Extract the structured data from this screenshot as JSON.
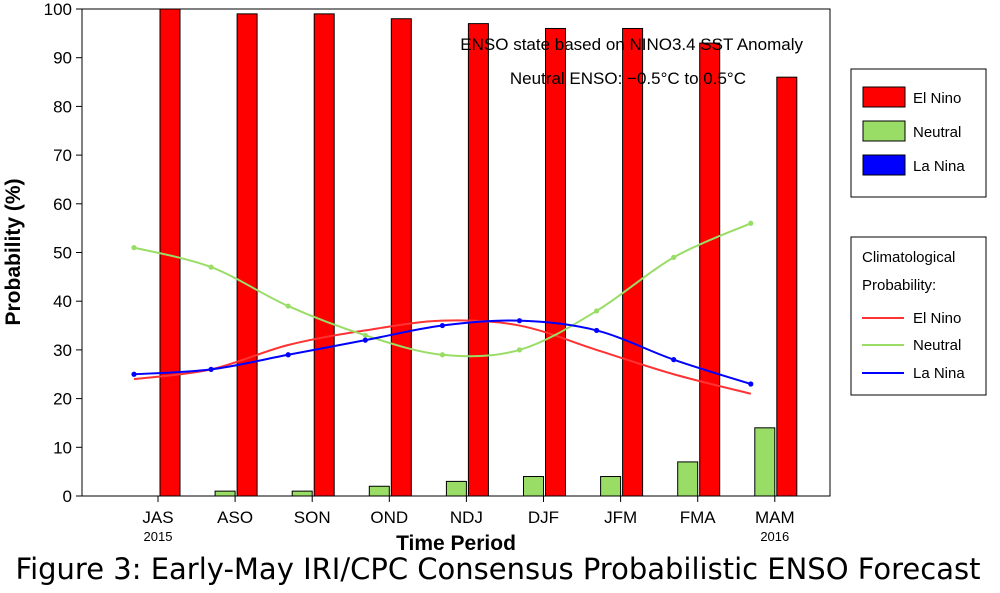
{
  "caption": "Figure 3: Early-May IRI/CPC Consensus Probabilistic ENSO Forecast",
  "chart_data": {
    "type": "bar",
    "title": "",
    "annotations": [
      "ENSO state based on NINO3.4 SST Anomaly",
      "Neutral ENSO: −0.5°C to 0.5°C"
    ],
    "xlabel": "Time Period",
    "ylabel": "Probability (%)",
    "ylim": [
      0,
      100
    ],
    "yticks": [
      0,
      10,
      20,
      30,
      40,
      50,
      60,
      70,
      80,
      90,
      100
    ],
    "categories": [
      "JAS",
      "ASO",
      "SON",
      "OND",
      "NDJ",
      "DJF",
      "JFM",
      "FMA",
      "MAM"
    ],
    "year_labels": [
      {
        "category": "JAS",
        "text": "2015"
      },
      {
        "category": "MAM",
        "text": "2016"
      }
    ],
    "grid": false,
    "series": [
      {
        "name": "El Nino",
        "kind": "bar",
        "color": "#ff0000",
        "values": [
          100,
          99,
          99,
          98,
          97,
          96,
          96,
          93,
          86
        ]
      },
      {
        "name": "Neutral",
        "kind": "bar",
        "color": "#99dd66",
        "values": [
          0,
          1,
          1,
          2,
          3,
          4,
          4,
          7,
          14
        ]
      },
      {
        "name": "La Nina",
        "kind": "bar",
        "color": "#0000ff",
        "values": [
          0,
          0,
          0,
          0,
          0,
          0,
          0,
          0,
          0
        ]
      }
    ],
    "climatology": {
      "label": "Climatological Probability:",
      "series": [
        {
          "name": "El Nino",
          "color": "#ff3333",
          "marker": false,
          "values": [
            24,
            26,
            31,
            34,
            36,
            35,
            30,
            25,
            21
          ]
        },
        {
          "name": "Neutral",
          "color": "#99dd66",
          "marker": true,
          "values": [
            51,
            47,
            39,
            33,
            29,
            30,
            38,
            49,
            56
          ]
        },
        {
          "name": "La Nina",
          "color": "#0000ff",
          "marker": true,
          "values": [
            25,
            26,
            29,
            32,
            35,
            36,
            34,
            28,
            23
          ]
        }
      ]
    },
    "legend_placement": "right"
  }
}
